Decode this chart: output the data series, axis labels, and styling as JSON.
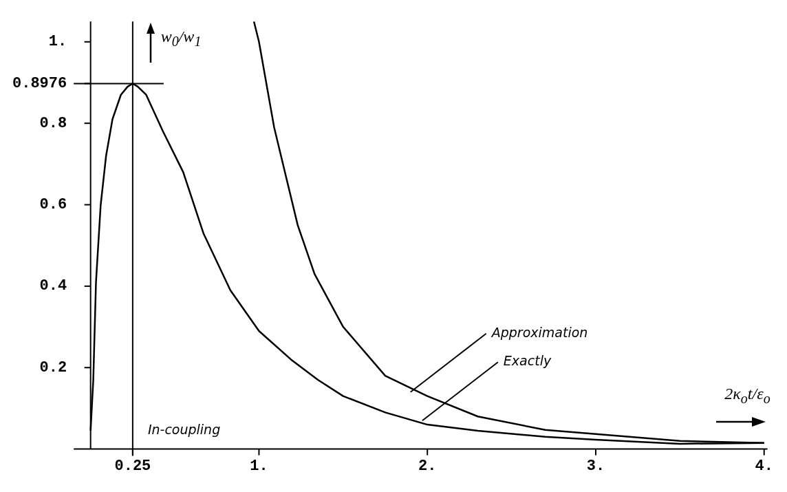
{
  "chart_data": {
    "type": "line",
    "xlabel": "2κ$_{o}$t/ε$_{o}$",
    "ylabel": "w$_{0}$/w$_{1}$",
    "xlim": [
      -0.1,
      4.02
    ],
    "ylim": [
      0,
      1.05
    ],
    "xticks": [
      {
        "value": 0.25,
        "label": "0.25"
      },
      {
        "value": 1,
        "label": "1."
      },
      {
        "value": 2,
        "label": "2."
      },
      {
        "value": 3,
        "label": "3."
      },
      {
        "value": 4,
        "label": "4."
      }
    ],
    "yticks": [
      {
        "value": 0.2,
        "label": "0.2"
      },
      {
        "value": 0.4,
        "label": "0.4"
      },
      {
        "value": 0.6,
        "label": "0.6"
      },
      {
        "value": 0.8,
        "label": "0.8"
      },
      {
        "value": 0.8976,
        "label": "0.8976"
      },
      {
        "value": 1,
        "label": "1."
      }
    ],
    "series": [
      {
        "color": "#000000",
        "x": [
          0,
          0.016,
          0.032,
          0.06,
          0.092,
          0.13,
          0.18,
          0.22,
          0.25,
          0.28,
          0.33,
          0.43,
          0.55,
          0.67,
          0.83,
          1,
          1.19,
          1.35,
          1.5,
          1.75,
          2,
          2.3,
          2.7,
          3,
          3.5,
          4
        ],
        "values": [
          0.045,
          0.17,
          0.41,
          0.6,
          0.72,
          0.81,
          0.87,
          0.89,
          0.8976,
          0.89,
          0.87,
          0.78,
          0.68,
          0.53,
          0.39,
          0.29,
          0.22,
          0.17,
          0.13,
          0.09,
          0.06,
          0.045,
          0.03,
          0.023,
          0.013,
          0.015
        ]
      },
      {
        "color": "#000000",
        "x": [
          0.97,
          1,
          1.09,
          1.23,
          1.33,
          1.5,
          1.75,
          2,
          2.3,
          2.7,
          3,
          3.5,
          4
        ],
        "values": [
          1.05,
          1,
          0.79,
          0.55,
          0.43,
          0.3,
          0.18,
          0.13,
          0.08,
          0.047,
          0.037,
          0.02,
          0.015
        ]
      }
    ],
    "ref_lines": [
      {
        "axis": "x",
        "value": 0.25,
        "label": "In-coupling"
      },
      {
        "axis": "y",
        "value": 0.8976
      }
    ],
    "annotations": [
      {
        "text": "Approximation",
        "x": 1.9,
        "y": 0.14
      },
      {
        "text": "Exactly",
        "x": 1.97,
        "y": 0.07
      }
    ],
    "grid": false,
    "legend": false,
    "marker": "none",
    "line_style": "solid"
  }
}
